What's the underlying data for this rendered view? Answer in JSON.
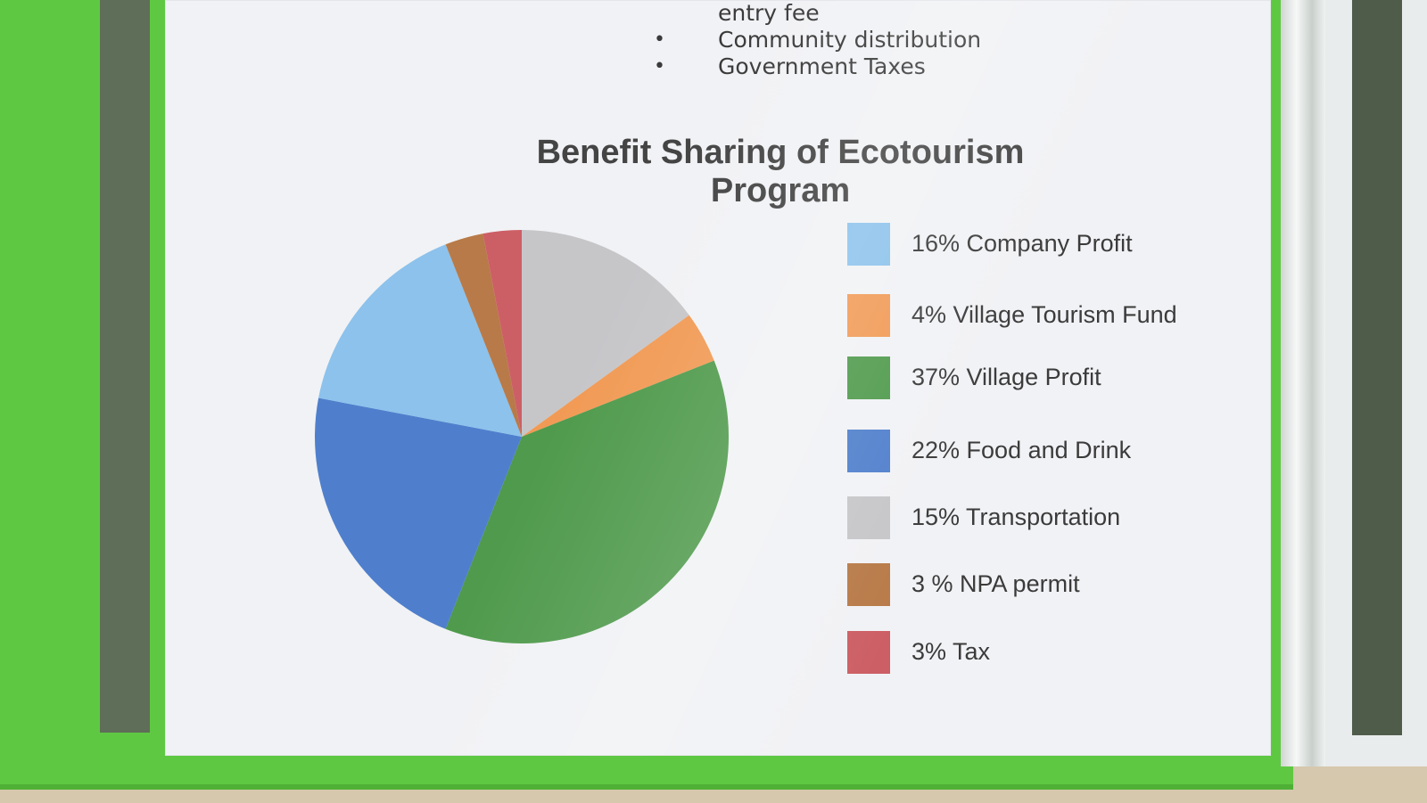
{
  "bullet_list": {
    "items": [
      {
        "text": "entry fee",
        "bullet": ""
      },
      {
        "text": "Community distribution",
        "bullet": "•"
      },
      {
        "text": "Government Taxes",
        "bullet": "•"
      }
    ]
  },
  "chart_data": {
    "type": "pie",
    "title": "Benefit Sharing of Ecotourism Program",
    "legend_position": "right",
    "slices": [
      {
        "label": "15% Transportation",
        "value": 15,
        "color": "#c6c6c9"
      },
      {
        "label": "4% Village Tourism Fund",
        "value": 4,
        "color": "#f19a55"
      },
      {
        "label": "37% Village Profit",
        "value": 37,
        "color": "#4f9a4c"
      },
      {
        "label": "22% Food and Drink",
        "value": 22,
        "color": "#4f7fcc"
      },
      {
        "label": "16% Company Profit",
        "value": 16,
        "color": "#8cc2ec"
      },
      {
        "label": "3 % NPA permit",
        "value": 3,
        "color": "#b87a48"
      },
      {
        "label": "3% Tax",
        "value": 3,
        "color": "#cc5f65"
      }
    ],
    "legend": [
      {
        "label": "16% Company Profit",
        "color": "#8cc2ec"
      },
      {
        "label": "4% Village Tourism Fund",
        "color": "#f19a55"
      },
      {
        "label": "37% Village Profit",
        "color": "#4f9a4c"
      },
      {
        "label": "22% Food and Drink",
        "color": "#4f7fcc"
      },
      {
        "label": "15% Transportation",
        "color": "#c6c6c9"
      },
      {
        "label": "3 % NPA permit",
        "color": "#b87a48"
      },
      {
        "label": "3% Tax",
        "color": "#cc5f65"
      }
    ]
  }
}
